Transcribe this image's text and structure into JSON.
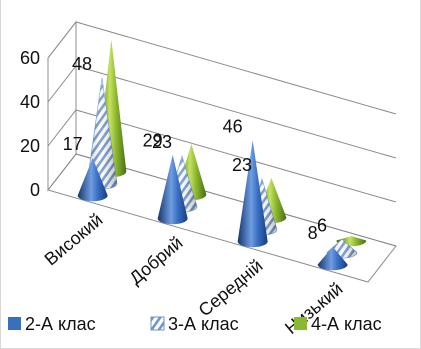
{
  "chart_data": {
    "type": "bar",
    "shape": "3d-cone",
    "categories": [
      "Високий",
      "Добрий",
      "Середній",
      "Низький"
    ],
    "series": [
      {
        "name": "2-А клас",
        "values": [
          17,
          29,
          46,
          8
        ]
      },
      {
        "name": "3-А клас",
        "values": [
          48,
          23,
          23,
          6
        ]
      },
      {
        "name": "4-А клас",
        "values": [
          60,
          23,
          18,
          0
        ]
      }
    ],
    "data_labels": [
      {
        "series": 0,
        "category": 0,
        "text": "17"
      },
      {
        "series": 1,
        "category": 0,
        "text": "48"
      },
      {
        "series": 0,
        "category": 1,
        "text": "29"
      },
      {
        "series": 1,
        "category": 1,
        "text": "23"
      },
      {
        "series": 0,
        "category": 2,
        "text": "46"
      },
      {
        "series": 1,
        "category": 2,
        "text": "23"
      },
      {
        "series": 0,
        "category": 3,
        "text": "8"
      },
      {
        "series": 1,
        "category": 3,
        "text": "6"
      }
    ],
    "y_ticks": [
      "0",
      "20",
      "40",
      "60"
    ],
    "ylim": [
      0,
      60
    ],
    "grid": true,
    "legend_position": "bottom",
    "title": "",
    "xlabel": "",
    "ylabel": "",
    "colors": [
      "#3a6fc0",
      "#c9d7ec",
      "#8ab830"
    ]
  }
}
